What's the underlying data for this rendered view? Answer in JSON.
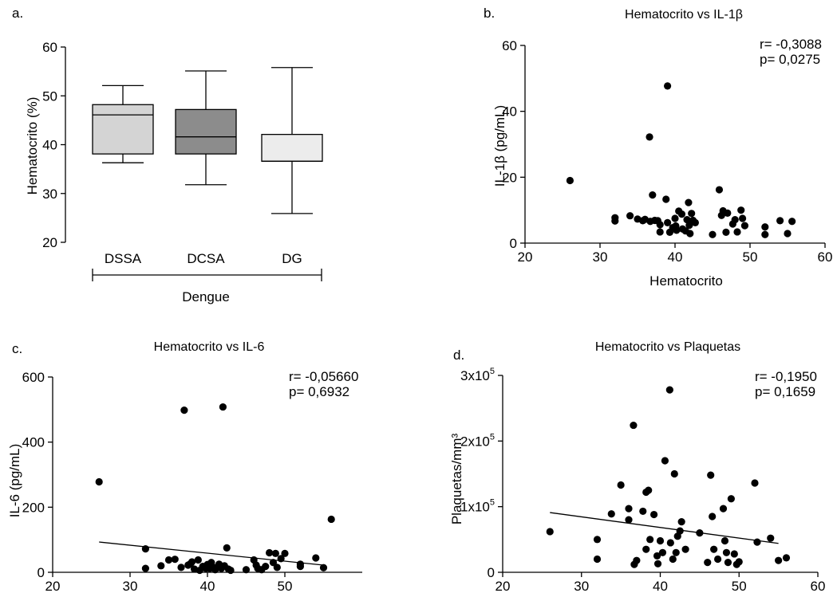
{
  "chart_data": [
    {
      "type": "box",
      "panel": "a.",
      "title": "",
      "ylabel": "Hematocrito (%)",
      "xlabel": "Dengue",
      "ylim": [
        20,
        60
      ],
      "yticks": [
        20,
        30,
        40,
        50,
        60
      ],
      "categories": [
        "DSSA",
        "DCSA",
        "DG"
      ],
      "colors": [
        "#d4d4d4",
        "#8c8c8c",
        "#ececec"
      ],
      "boxes": [
        {
          "min": 36.3,
          "q1": 38.1,
          "median": 46.1,
          "q3": 48.2,
          "max": 52.1
        },
        {
          "min": 31.8,
          "q1": 38.1,
          "median": 41.6,
          "q3": 47.2,
          "max": 55.1
        },
        {
          "min": 25.9,
          "q1": 36.6,
          "median": 36.6,
          "q3": 42.1,
          "max": 55.8
        }
      ]
    },
    {
      "type": "scatter",
      "panel": "b.",
      "title": "Hematocrito vs IL-1β",
      "xlabel": "Hematocrito",
      "ylabel": "IL-1β (pg/mL)",
      "xlim": [
        20,
        60
      ],
      "ylim": [
        0,
        60
      ],
      "xticks": [
        20,
        30,
        40,
        50,
        60
      ],
      "yticks": [
        0,
        20,
        40,
        60
      ],
      "stats": [
        "r= -0,3088",
        "p= 0,0275"
      ],
      "regression": null,
      "points": [
        [
          26,
          19.0
        ],
        [
          32,
          7.7
        ],
        [
          32,
          6.7
        ],
        [
          34,
          8.3
        ],
        [
          35,
          7.3
        ],
        [
          35.7,
          6.8
        ],
        [
          36,
          7.2
        ],
        [
          36.6,
          32.2
        ],
        [
          36.7,
          6.6
        ],
        [
          37,
          14.6
        ],
        [
          37.3,
          6.9
        ],
        [
          37.7,
          6.8
        ],
        [
          38,
          5.6
        ],
        [
          38,
          3.4
        ],
        [
          38.8,
          13.3
        ],
        [
          39,
          47.7
        ],
        [
          39,
          6.2
        ],
        [
          39.3,
          3.3
        ],
        [
          39.7,
          4.7
        ],
        [
          40,
          7.5
        ],
        [
          40.1,
          5.2
        ],
        [
          40.2,
          3.9
        ],
        [
          40.5,
          9.7
        ],
        [
          40.9,
          8.8
        ],
        [
          41,
          4.3
        ],
        [
          41.4,
          3.7
        ],
        [
          41.6,
          7.1
        ],
        [
          41.8,
          12.3
        ],
        [
          41.9,
          5.4
        ],
        [
          42,
          2.9
        ],
        [
          42.2,
          9.0
        ],
        [
          42.4,
          6.9
        ],
        [
          42.7,
          6.2
        ],
        [
          45,
          2.6
        ],
        [
          45.9,
          16.2
        ],
        [
          46.2,
          8.4
        ],
        [
          46.4,
          9.8
        ],
        [
          46.8,
          3.3
        ],
        [
          47,
          9.1
        ],
        [
          47.7,
          5.8
        ],
        [
          48,
          7.1
        ],
        [
          48.3,
          3.4
        ],
        [
          48.8,
          10.0
        ],
        [
          49,
          7.5
        ],
        [
          49.3,
          5.3
        ],
        [
          52,
          4.9
        ],
        [
          52,
          2.6
        ],
        [
          54,
          6.8
        ],
        [
          55,
          2.9
        ],
        [
          55.6,
          6.6
        ]
      ]
    },
    {
      "type": "scatter",
      "panel": "c.",
      "title": "Hematocrito vs IL-6",
      "xlabel": "",
      "ylabel": "IL-6 (pg/mL)",
      "xlim": [
        20,
        60
      ],
      "ylim": [
        0,
        600
      ],
      "xticks": [
        20,
        30,
        40,
        50
      ],
      "yticks": [
        0,
        200,
        400,
        600
      ],
      "stats": [
        "r= -0,05660",
        "p= 0,6932"
      ],
      "regression": {
        "x": [
          26,
          55
        ],
        "y": [
          93,
          22
        ]
      },
      "points": [
        [
          26,
          278
        ],
        [
          32,
          72
        ],
        [
          32,
          12
        ],
        [
          34,
          20
        ],
        [
          35,
          38
        ],
        [
          35.8,
          40
        ],
        [
          36.6,
          15
        ],
        [
          37,
          498
        ],
        [
          37.5,
          22
        ],
        [
          37.8,
          26
        ],
        [
          38,
          32
        ],
        [
          38.3,
          10
        ],
        [
          38.8,
          38
        ],
        [
          39,
          6
        ],
        [
          39.4,
          18
        ],
        [
          39.8,
          12
        ],
        [
          40,
          24
        ],
        [
          40.3,
          12
        ],
        [
          40.5,
          30
        ],
        [
          40.8,
          15
        ],
        [
          41,
          8
        ],
        [
          41.5,
          25
        ],
        [
          41.8,
          12
        ],
        [
          42,
          508
        ],
        [
          42.2,
          20
        ],
        [
          42.5,
          75
        ],
        [
          42.7,
          10
        ],
        [
          43,
          6
        ],
        [
          45,
          8
        ],
        [
          46,
          38
        ],
        [
          46.3,
          22
        ],
        [
          46.5,
          12
        ],
        [
          47,
          8
        ],
        [
          47.5,
          18
        ],
        [
          48,
          60
        ],
        [
          48.5,
          30
        ],
        [
          48.8,
          58
        ],
        [
          49,
          15
        ],
        [
          49.5,
          42
        ],
        [
          50,
          58
        ],
        [
          52,
          25
        ],
        [
          52,
          18
        ],
        [
          54,
          44
        ],
        [
          55,
          14
        ],
        [
          56,
          163
        ]
      ]
    },
    {
      "type": "scatter",
      "panel": "d.",
      "title": "Hematocrito vs Plaquetas",
      "xlabel": "",
      "ylabel": "Plaquetas/mm³",
      "xlim": [
        20,
        60
      ],
      "ylim": [
        0,
        300000
      ],
      "xticks": [
        20,
        30,
        40,
        50,
        60
      ],
      "yticks": [
        0,
        100000,
        200000,
        300000
      ],
      "ytick_labels": [
        {
          "base": "0",
          "exp": ""
        },
        {
          "base": "1x10",
          "exp": "5"
        },
        {
          "base": "2x10",
          "exp": "5"
        },
        {
          "base": "3x10",
          "exp": "5"
        }
      ],
      "stats": [
        "r= -0,1950",
        "p= 0,1659"
      ],
      "regression": {
        "x": [
          26,
          55
        ],
        "y": [
          91000,
          44000
        ]
      },
      "points": [
        [
          26,
          62000
        ],
        [
          32,
          50000
        ],
        [
          32,
          20000
        ],
        [
          33.8,
          89000
        ],
        [
          35,
          133000
        ],
        [
          36,
          97000
        ],
        [
          36,
          80000
        ],
        [
          36.6,
          224000
        ],
        [
          36.7,
          12000
        ],
        [
          37,
          18000
        ],
        [
          37.8,
          93000
        ],
        [
          38.2,
          122000
        ],
        [
          38.2,
          35000
        ],
        [
          38.5,
          125000
        ],
        [
          38.7,
          50000
        ],
        [
          39.2,
          88000
        ],
        [
          39.6,
          25000
        ],
        [
          39.7,
          13000
        ],
        [
          40,
          48000
        ],
        [
          40.3,
          30000
        ],
        [
          40.6,
          170000
        ],
        [
          41.2,
          278000
        ],
        [
          41.3,
          45000
        ],
        [
          41.6,
          20000
        ],
        [
          41.8,
          150000
        ],
        [
          42,
          30000
        ],
        [
          42.2,
          55000
        ],
        [
          42.5,
          63000
        ],
        [
          42.7,
          77000
        ],
        [
          43.2,
          35000
        ],
        [
          45,
          60000
        ],
        [
          46,
          15000
        ],
        [
          46.4,
          148000
        ],
        [
          46.6,
          85000
        ],
        [
          46.8,
          35000
        ],
        [
          47.3,
          20000
        ],
        [
          48,
          97000
        ],
        [
          48.2,
          48000
        ],
        [
          48.4,
          30000
        ],
        [
          48.6,
          15000
        ],
        [
          49,
          112000
        ],
        [
          49.4,
          28000
        ],
        [
          49.7,
          12000
        ],
        [
          50,
          16000
        ],
        [
          52,
          136000
        ],
        [
          52.3,
          46000
        ],
        [
          54,
          52000
        ],
        [
          55,
          18000
        ],
        [
          56,
          22000
        ]
      ]
    }
  ]
}
